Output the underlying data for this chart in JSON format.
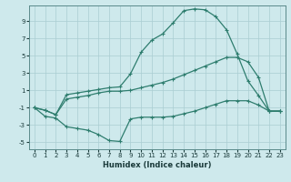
{
  "xlabel": "Humidex (Indice chaleur)",
  "background_color": "#cee9ec",
  "grid_color": "#aacdd2",
  "line_color": "#2e7d6e",
  "xlim": [
    -0.5,
    23.5
  ],
  "ylim": [
    -5.8,
    10.8
  ],
  "xticks": [
    0,
    1,
    2,
    3,
    4,
    5,
    6,
    7,
    8,
    9,
    10,
    11,
    12,
    13,
    14,
    15,
    16,
    17,
    18,
    19,
    20,
    21,
    22,
    23
  ],
  "yticks": [
    -5,
    -3,
    -1,
    1,
    3,
    5,
    7,
    9
  ],
  "line1_x": [
    0,
    1,
    2,
    3,
    4,
    5,
    6,
    7,
    8,
    9,
    10,
    11,
    12,
    13,
    14,
    15,
    16,
    17,
    18,
    19,
    20,
    21,
    22,
    23
  ],
  "line1_y": [
    -1.0,
    -2.0,
    -2.2,
    -3.2,
    -3.4,
    -3.6,
    -4.1,
    -4.8,
    -4.9,
    -2.3,
    -2.1,
    -2.1,
    -2.1,
    -2.0,
    -1.7,
    -1.4,
    -1.0,
    -0.6,
    -0.2,
    -0.2,
    -0.2,
    -0.7,
    -1.4,
    -1.4
  ],
  "line2_x": [
    0,
    1,
    2,
    3,
    4,
    5,
    6,
    7,
    8,
    9,
    10,
    11,
    12,
    13,
    14,
    15,
    16,
    17,
    18,
    19,
    20,
    21,
    22,
    23
  ],
  "line2_y": [
    -1.0,
    -1.3,
    -1.8,
    0.5,
    0.7,
    0.9,
    1.1,
    1.3,
    1.4,
    2.9,
    5.4,
    6.8,
    7.5,
    8.8,
    10.2,
    10.4,
    10.3,
    9.5,
    8.0,
    5.2,
    2.1,
    0.4,
    -1.4,
    -1.4
  ],
  "line3_x": [
    0,
    1,
    2,
    3,
    4,
    5,
    6,
    7,
    8,
    9,
    10,
    11,
    12,
    13,
    14,
    15,
    16,
    17,
    18,
    19,
    20,
    21,
    22,
    23
  ],
  "line3_y": [
    -1.0,
    -1.3,
    -1.8,
    0.0,
    0.2,
    0.4,
    0.7,
    0.9,
    0.9,
    1.0,
    1.3,
    1.6,
    1.9,
    2.3,
    2.8,
    3.3,
    3.8,
    4.3,
    4.8,
    4.8,
    4.3,
    2.5,
    -1.4,
    -1.4
  ]
}
